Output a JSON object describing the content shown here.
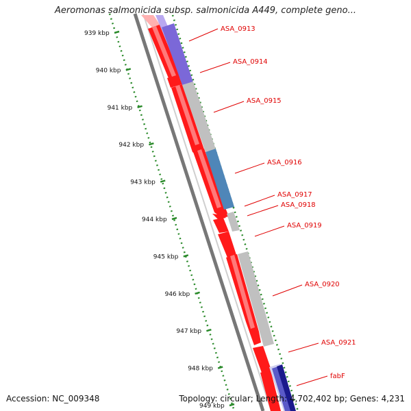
{
  "title": "Aeromonas salmonicida subsp. salmonicida A449, complete geno...",
  "footer": {
    "accession": "Accession: NC_009348",
    "summary": "Topology: circular; Length: 4,702,402 bp; Genes: 4,231"
  },
  "ruler_labels": [
    "939 kbp",
    "940 kbp",
    "941 kbp",
    "942 kbp",
    "943 kbp",
    "944 kbp",
    "945 kbp",
    "946 kbp",
    "947 kbp",
    "948 kbp",
    "949 kbp"
  ],
  "genes": [
    {
      "name": "ASA_0913",
      "color": "#7b68d8"
    },
    {
      "name": "ASA_0914",
      "color": "#7b68d8"
    },
    {
      "name": "ASA_0915",
      "color": "#c0c0c0"
    },
    {
      "name": "ASA_0916",
      "color": "#4f86b8"
    },
    {
      "name": "ASA_0917",
      "color": "#c0c0c0"
    },
    {
      "name": "ASA_0918",
      "color": "#c0c0c0"
    },
    {
      "name": "ASA_0919",
      "color": "#c0c0c0"
    },
    {
      "name": "ASA_0920",
      "color": "#c0c0c0"
    },
    {
      "name": "ASA_0921",
      "color": "#c0c0c0"
    },
    {
      "name": "fabF",
      "color": "#1a1a8c"
    }
  ],
  "colors": {
    "feature_arrow": "#ff1a1a",
    "label_text": "#e00000",
    "ruler_tick": "#2a8a2a",
    "backbone": "#7a7a7a"
  }
}
